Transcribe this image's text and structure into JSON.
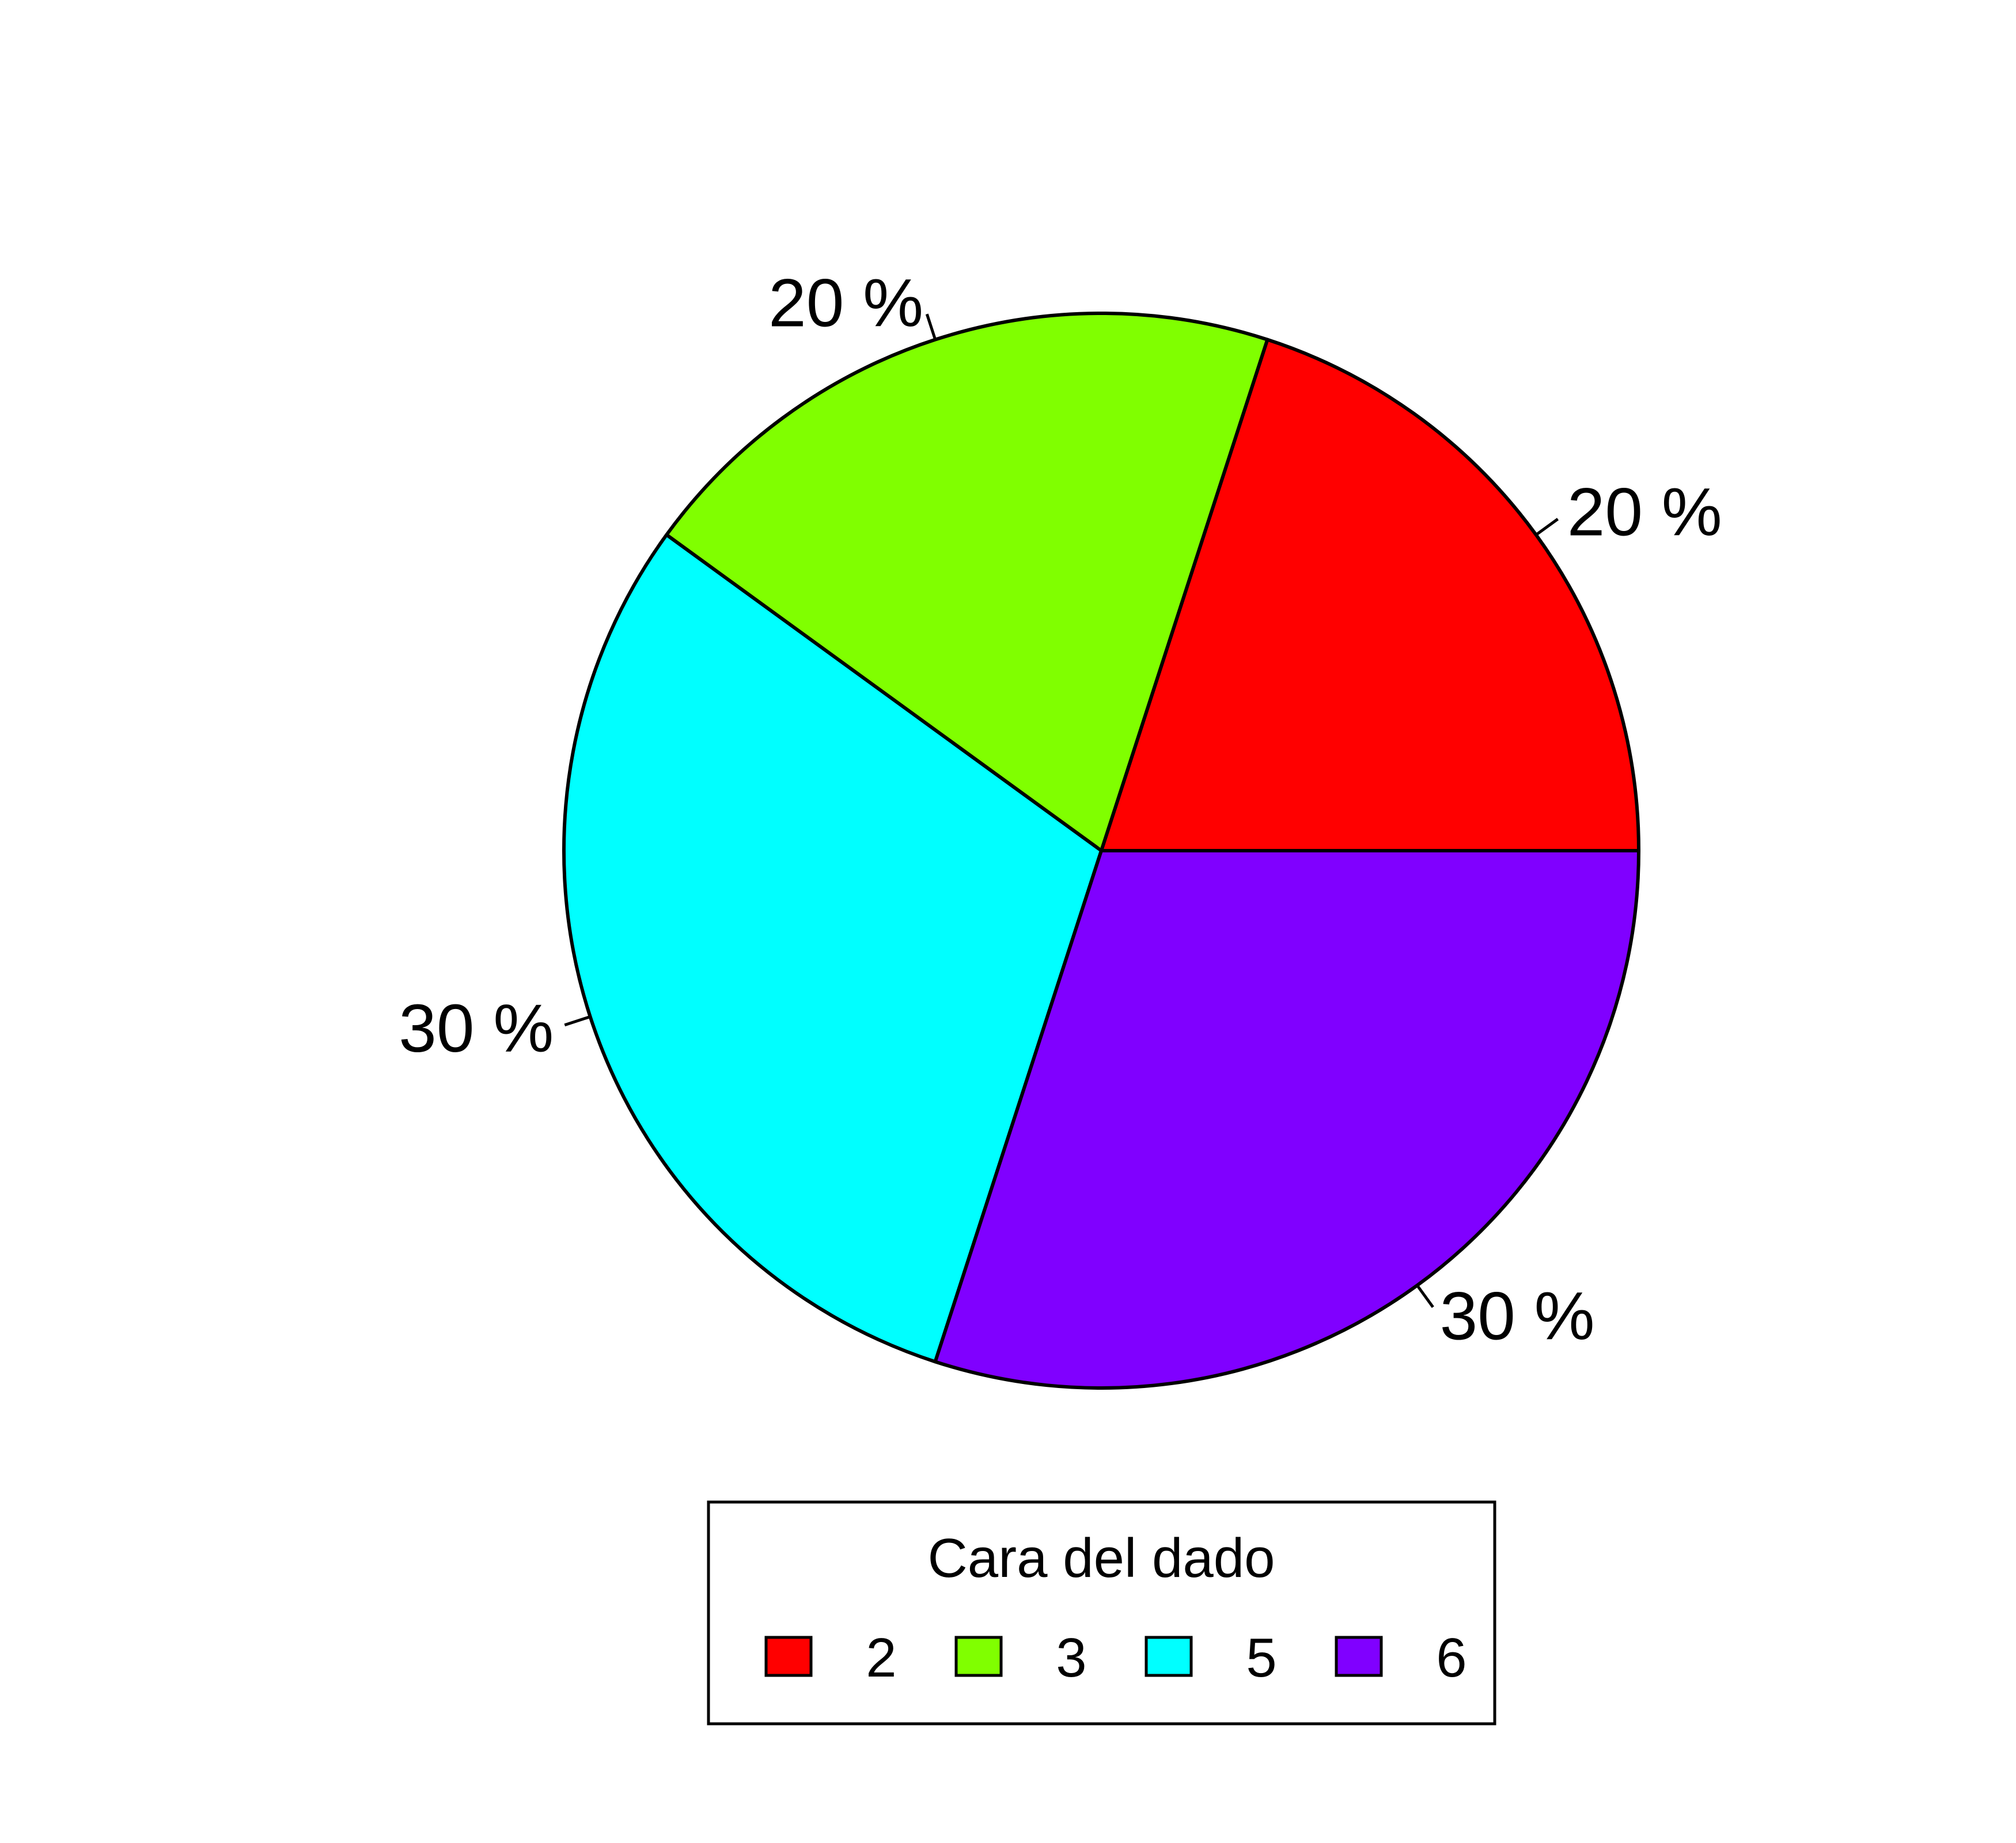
{
  "chart_data": {
    "type": "pie",
    "categories": [
      "2",
      "3",
      "5",
      "6"
    ],
    "values": [
      20,
      20,
      30,
      30
    ],
    "labels": [
      "20 %",
      "20 %",
      "30 %",
      "30 %"
    ],
    "colors": [
      "#FF0000",
      "#80FF00",
      "#00FFFF",
      "#8000FF"
    ],
    "start_angle_deg": 0,
    "direction": "counterclockwise",
    "legend": {
      "title": "Cara del dado",
      "entries": [
        "2",
        "3",
        "5",
        "6"
      ],
      "placement": "bottom"
    }
  }
}
